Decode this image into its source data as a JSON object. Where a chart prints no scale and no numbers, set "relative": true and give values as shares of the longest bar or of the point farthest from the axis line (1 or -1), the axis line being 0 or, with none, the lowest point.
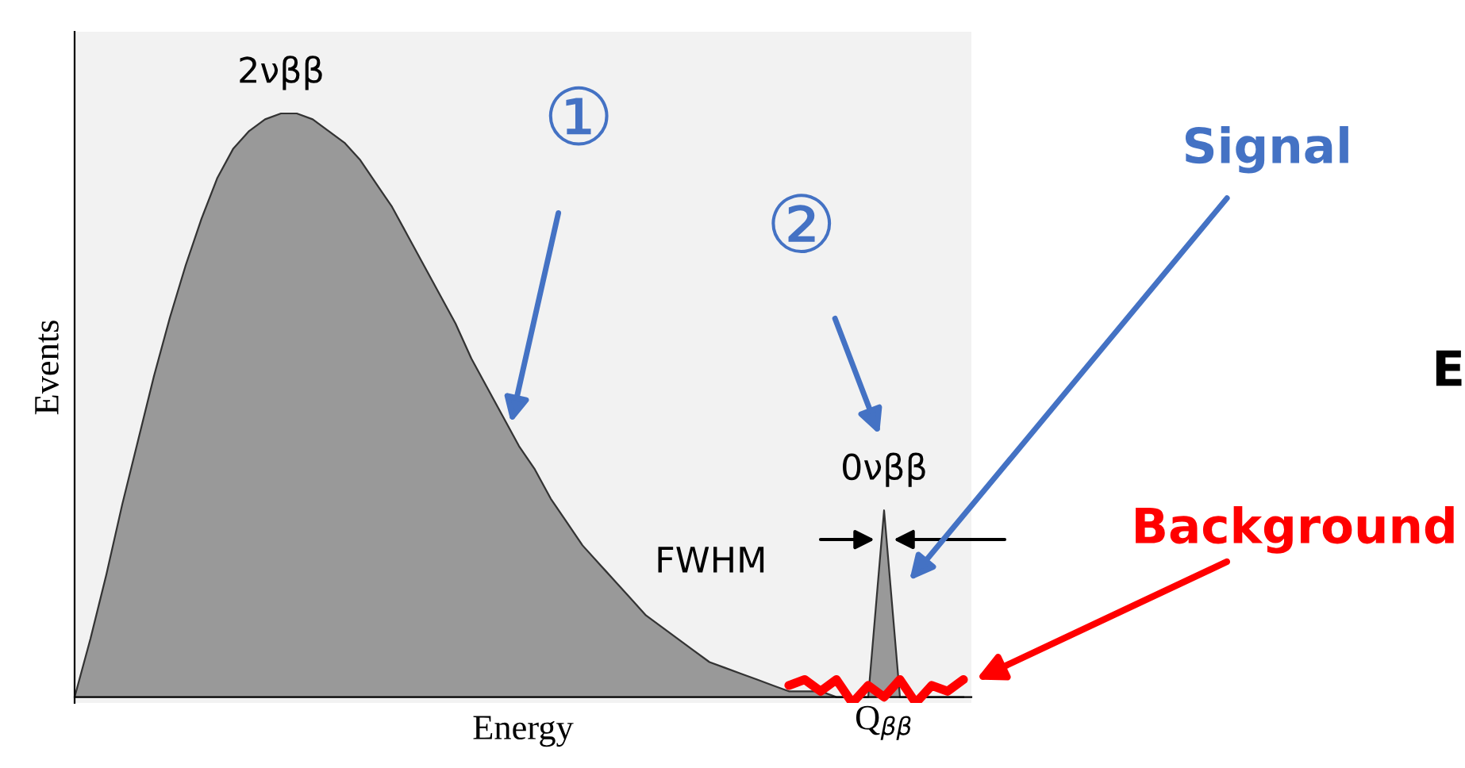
{
  "chart_data": {
    "type": "area",
    "relative": true,
    "xlabel": "Energy",
    "ylabel": "Events",
    "categories": [
      null,
      null,
      null,
      null,
      null,
      null,
      null,
      null,
      null,
      null,
      null,
      null,
      null,
      null,
      null,
      null,
      null,
      null,
      null,
      null,
      null,
      null,
      null,
      null,
      null,
      null,
      null,
      null,
      null,
      null,
      null,
      null,
      null,
      null,
      null,
      null,
      null,
      null,
      null,
      null,
      null,
      null,
      null,
      null,
      null,
      null,
      null,
      null,
      null,
      null,
      null,
      null,
      null,
      null,
      null,
      null,
      null
    ],
    "series": [
      {
        "name": "2νββ",
        "color": "#999999",
        "values": [
          0,
          0.1,
          0.21,
          0.33,
          0.44,
          0.55,
          0.65,
          0.74,
          0.82,
          0.89,
          0.94,
          0.97,
          0.99,
          1.0,
          1.0,
          0.99,
          0.97,
          0.95,
          0.92,
          0.88,
          0.84,
          0.79,
          0.74,
          0.69,
          0.64,
          0.58,
          0.53,
          0.48,
          0.43,
          0.39,
          0.34,
          0.3,
          0.26,
          0.23,
          0.2,
          0.17,
          0.14,
          0.12,
          0.1,
          0.08,
          0.06,
          0.05,
          0.04,
          0.03,
          0.02,
          0.01,
          0.01,
          0.01,
          0,
          0,
          0,
          0.32,
          0,
          0,
          0,
          0,
          0
        ]
      },
      {
        "name": "Background",
        "type": "line",
        "color": "#ff0000",
        "values": [
          null,
          null,
          null,
          null,
          null,
          null,
          null,
          null,
          null,
          null,
          null,
          null,
          null,
          null,
          null,
          null,
          null,
          null,
          null,
          null,
          null,
          null,
          null,
          null,
          null,
          null,
          null,
          null,
          null,
          null,
          null,
          null,
          null,
          null,
          null,
          null,
          null,
          null,
          null,
          null,
          null,
          null,
          null,
          null,
          null,
          0.02,
          0.03,
          0.01,
          0.03,
          -0.01,
          0.02,
          0.0,
          0.03,
          -0.01,
          0.02,
          0.01,
          0.03
        ]
      }
    ],
    "annotations": [
      "①",
      "②",
      "FWHM",
      "Signal",
      "E",
      "Q$_{ββ}$",
      "0νββ"
    ]
  }
}
